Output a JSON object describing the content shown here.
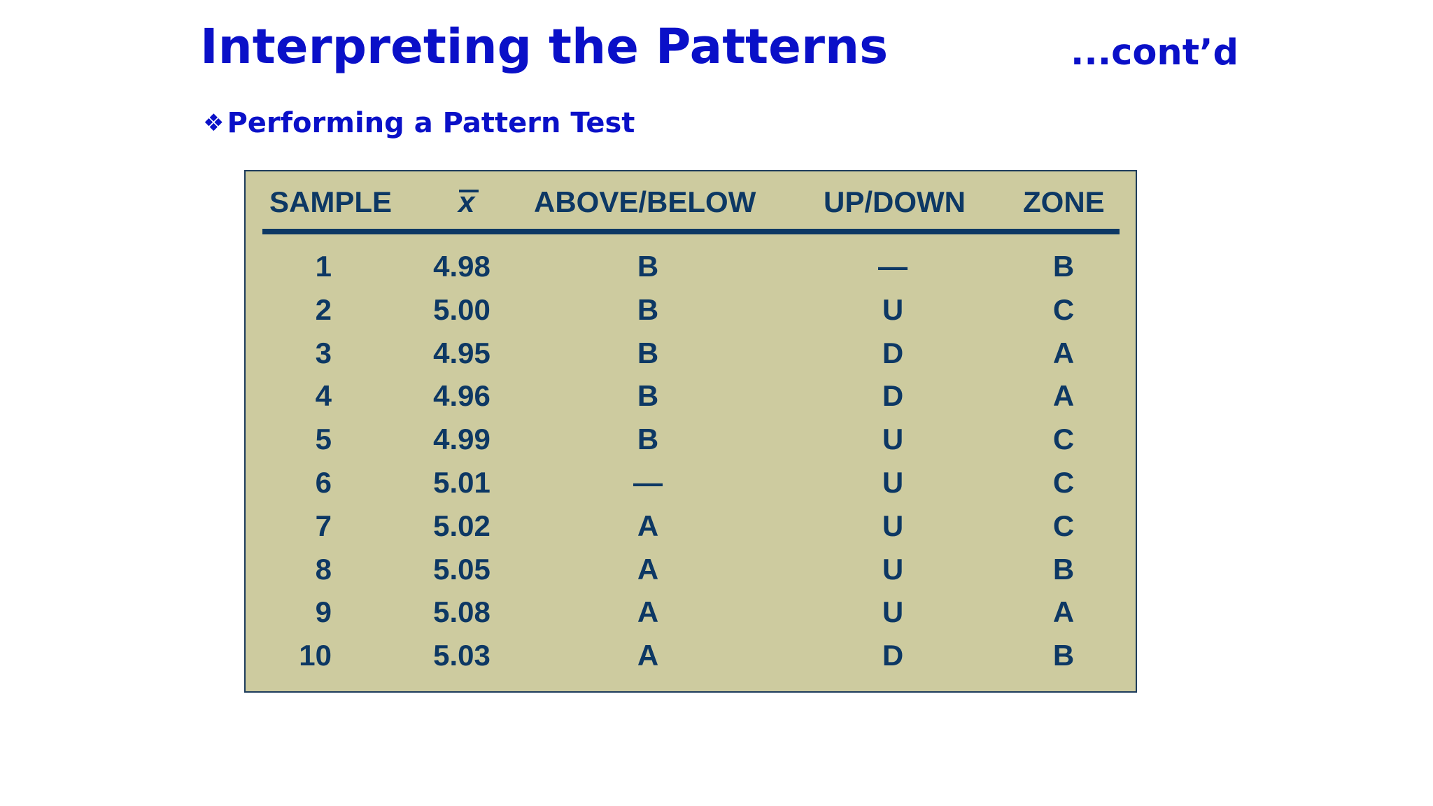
{
  "slide": {
    "title": "Interpreting the Patterns",
    "contd": "...cont’d",
    "bullet_glyph": "❖",
    "bullet_text": "Performing a Pattern Test"
  },
  "table": {
    "headers": {
      "sample": "SAMPLE",
      "xbar": "x",
      "above_below": "ABOVE/BELOW",
      "up_down": "UP/DOWN",
      "zone": "ZONE"
    },
    "rows": [
      {
        "sample": "1",
        "xbar": "4.98",
        "above_below": "B",
        "up_down": "—",
        "zone": "B"
      },
      {
        "sample": "2",
        "xbar": "5.00",
        "above_below": "B",
        "up_down": "U",
        "zone": "C"
      },
      {
        "sample": "3",
        "xbar": "4.95",
        "above_below": "B",
        "up_down": "D",
        "zone": "A"
      },
      {
        "sample": "4",
        "xbar": "4.96",
        "above_below": "B",
        "up_down": "D",
        "zone": "A"
      },
      {
        "sample": "5",
        "xbar": "4.99",
        "above_below": "B",
        "up_down": "U",
        "zone": "C"
      },
      {
        "sample": "6",
        "xbar": "5.01",
        "above_below": "—",
        "up_down": "U",
        "zone": "C"
      },
      {
        "sample": "7",
        "xbar": "5.02",
        "above_below": "A",
        "up_down": "U",
        "zone": "C"
      },
      {
        "sample": "8",
        "xbar": "5.05",
        "above_below": "A",
        "up_down": "U",
        "zone": "B"
      },
      {
        "sample": "9",
        "xbar": "5.08",
        "above_below": "A",
        "up_down": "U",
        "zone": "A"
      },
      {
        "sample": "10",
        "xbar": "5.03",
        "above_below": "A",
        "up_down": "D",
        "zone": "B"
      }
    ]
  }
}
